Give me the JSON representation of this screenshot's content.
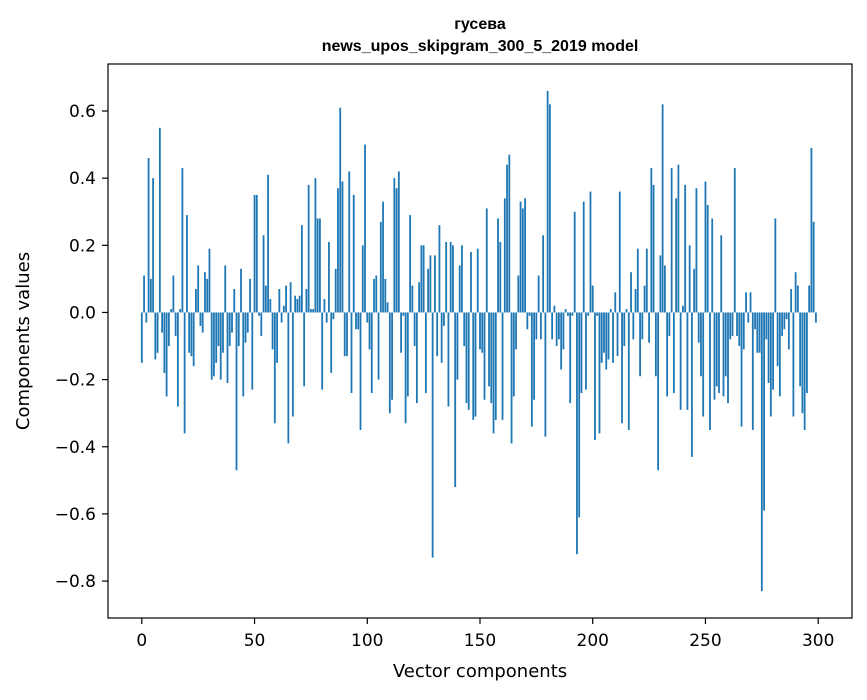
{
  "chart_data": {
    "type": "bar",
    "title": "гусева",
    "subtitle": "news_upos_skipgram_300_5_2019 model",
    "xlabel": "Vector components",
    "ylabel": "Components values",
    "xlim": [
      -15,
      315
    ],
    "ylim": [
      -0.91,
      0.74
    ],
    "xticks": [
      0,
      50,
      100,
      150,
      200,
      250,
      300
    ],
    "yticks": [
      -0.8,
      -0.6,
      -0.4,
      -0.2,
      0.0,
      0.2,
      0.4,
      0.6
    ],
    "ytick_labels": [
      "−0.8",
      "−0.6",
      "−0.4",
      "−0.2",
      "0.0",
      "0.2",
      "0.4",
      "0.6"
    ],
    "xtick_labels": [
      "0",
      "50",
      "100",
      "150",
      "200",
      "250",
      "300"
    ],
    "bar_color": "#1f77b4",
    "grid": false,
    "x_start": 0,
    "values": [
      -0.15,
      0.11,
      -0.03,
      0.46,
      0.1,
      0.4,
      -0.14,
      -0.12,
      0.55,
      -0.06,
      -0.18,
      -0.25,
      -0.1,
      0.01,
      0.11,
      -0.07,
      -0.28,
      0.01,
      0.43,
      -0.36,
      0.29,
      -0.12,
      -0.13,
      -0.16,
      0.07,
      0.14,
      -0.04,
      -0.06,
      0.12,
      0.1,
      0.19,
      -0.2,
      -0.19,
      -0.15,
      -0.1,
      -0.2,
      -0.12,
      0.14,
      -0.21,
      -0.1,
      -0.06,
      0.07,
      -0.47,
      -0.1,
      0.13,
      -0.25,
      -0.09,
      -0.06,
      0.1,
      -0.23,
      0.35,
      0.35,
      -0.01,
      -0.07,
      0.23,
      0.08,
      0.41,
      0.04,
      -0.11,
      -0.33,
      -0.15,
      0.07,
      -0.03,
      0.02,
      0.08,
      -0.39,
      0.09,
      -0.31,
      0.05,
      0.04,
      0.05,
      0.26,
      -0.22,
      0.07,
      0.38,
      0.01,
      0.01,
      0.4,
      0.28,
      0.28,
      -0.23,
      0.04,
      -0.03,
      0.21,
      -0.18,
      -0.02,
      0.13,
      0.37,
      0.61,
      0.39,
      -0.13,
      -0.13,
      0.42,
      -0.24,
      0.35,
      -0.05,
      -0.05,
      -0.35,
      0.2,
      0.5,
      -0.03,
      -0.11,
      -0.24,
      0.1,
      0.11,
      -0.2,
      0.27,
      0.33,
      0.1,
      0.03,
      -0.3,
      -0.26,
      0.4,
      0.37,
      0.42,
      -0.12,
      -0.01,
      -0.33,
      -0.25,
      0.29,
      0.08,
      -0.1,
      -0.27,
      0.09,
      0.2,
      0.2,
      -0.24,
      0.13,
      0.17,
      -0.73,
      0.17,
      -0.13,
      0.26,
      -0.15,
      -0.04,
      0.21,
      -0.28,
      0.21,
      0.2,
      -0.52,
      -0.2,
      0.14,
      0.2,
      -0.1,
      -0.27,
      -0.29,
      0.18,
      -0.32,
      -0.31,
      0.19,
      -0.11,
      -0.12,
      -0.26,
      0.31,
      -0.22,
      -0.27,
      -0.36,
      -0.32,
      0.28,
      0.21,
      -0.32,
      0.34,
      0.44,
      0.47,
      -0.39,
      -0.25,
      -0.11,
      0.11,
      0.33,
      0.31,
      0.34,
      -0.05,
      -0.01,
      -0.34,
      -0.26,
      -0.08,
      0.11,
      -0.08,
      0.23,
      -0.37,
      0.66,
      0.62,
      -0.08,
      0.02,
      -0.1,
      -0.08,
      -0.17,
      -0.11,
      0.01,
      -0.01,
      -0.27,
      -0.01,
      0.3,
      -0.72,
      -0.61,
      -0.24,
      0.33,
      -0.23,
      -0.01,
      0.36,
      0.08,
      -0.38,
      -0.01,
      -0.36,
      -0.15,
      -0.12,
      -0.17,
      -0.14,
      0.01,
      -0.15,
      0.06,
      -0.13,
      0.36,
      -0.33,
      -0.1,
      0.01,
      -0.35,
      0.12,
      -0.08,
      0.07,
      0.19,
      -0.19,
      -0.08,
      0.08,
      0.19,
      -0.09,
      0.43,
      0.38,
      -0.19,
      -0.47,
      0.17,
      0.62,
      0.14,
      -0.25,
      -0.07,
      0.43,
      -0.24,
      0.34,
      0.44,
      -0.29,
      0.02,
      0.38,
      -0.29,
      0.2,
      -0.43,
      0.13,
      0.37,
      -0.09,
      -0.19,
      -0.31,
      0.39,
      0.32,
      -0.35,
      0.28,
      -0.26,
      -0.22,
      -0.24,
      0.23,
      -0.25,
      -0.19,
      -0.27,
      -0.08,
      -0.07,
      0.43,
      -0.07,
      -0.1,
      -0.34,
      -0.11,
      0.06,
      -0.03,
      0.06,
      -0.35,
      -0.05,
      -0.12,
      -0.12,
      -0.83,
      -0.59,
      -0.08,
      -0.21,
      -0.31,
      -0.23,
      0.28,
      -0.16,
      -0.25,
      -0.07,
      -0.05,
      -0.02,
      -0.11,
      0.07,
      -0.31,
      0.12,
      0.08,
      -0.22,
      -0.3,
      -0.35,
      -0.24,
      0.08,
      0.49,
      0.27,
      -0.03
    ]
  }
}
